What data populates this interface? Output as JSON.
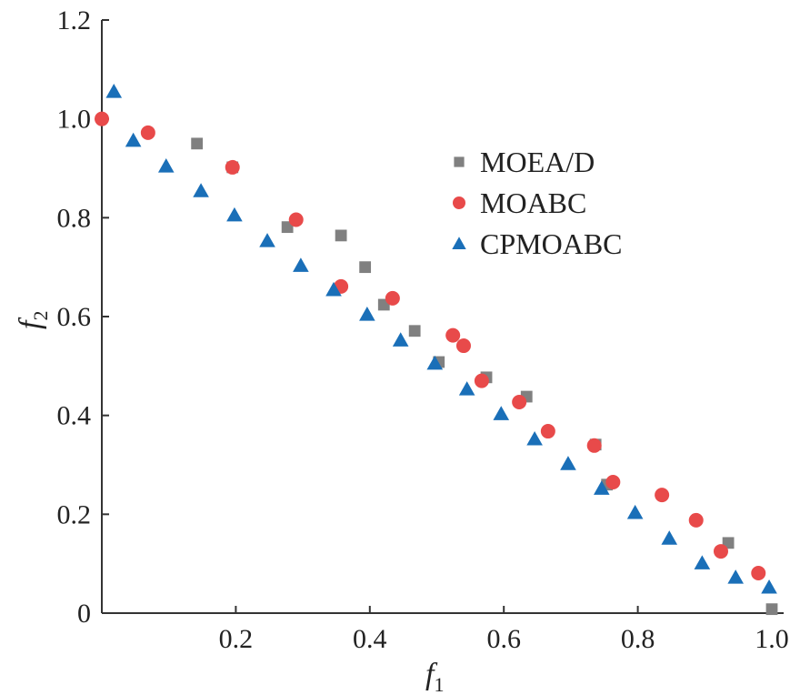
{
  "chart_data": {
    "type": "scatter",
    "xlabel": "f",
    "xlabel_sub": "1",
    "ylabel": "f",
    "ylabel_sub": "2",
    "xlim": [
      0,
      1.0
    ],
    "ylim": [
      0,
      1.2
    ],
    "xticks": [
      "0.2",
      "0.4",
      "0.6",
      "0.8",
      "1.0"
    ],
    "yticks": [
      "0",
      "0.2",
      "0.4",
      "0.6",
      "0.8",
      "1.0",
      "1.2"
    ],
    "grid": false,
    "legend_position": "upper-right",
    "series": [
      {
        "name": "MOEA/D",
        "marker": "square",
        "color": "#808080",
        "x": [
          0.142,
          0.195,
          0.277,
          0.357,
          0.393,
          0.421,
          0.467,
          0.503,
          0.574,
          0.634,
          0.737,
          0.754,
          0.935,
          1.0
        ],
        "y": [
          0.95,
          0.902,
          0.781,
          0.764,
          0.7,
          0.624,
          0.571,
          0.508,
          0.477,
          0.438,
          0.341,
          0.26,
          0.142,
          0.008
        ]
      },
      {
        "name": "MOABC",
        "marker": "circle",
        "color": "#e84a4a",
        "x": [
          0.0,
          0.069,
          0.195,
          0.29,
          0.357,
          0.434,
          0.524,
          0.54,
          0.567,
          0.623,
          0.666,
          0.735,
          0.763,
          0.836,
          0.887,
          0.924,
          0.98
        ],
        "y": [
          1.0,
          0.972,
          0.902,
          0.796,
          0.661,
          0.637,
          0.562,
          0.541,
          0.47,
          0.427,
          0.368,
          0.339,
          0.265,
          0.239,
          0.188,
          0.125,
          0.081
        ]
      },
      {
        "name": "CPMOABC",
        "marker": "triangle",
        "color": "#1a6fb8",
        "x": [
          0.018,
          0.047,
          0.096,
          0.148,
          0.198,
          0.247,
          0.297,
          0.346,
          0.396,
          0.446,
          0.497,
          0.545,
          0.596,
          0.646,
          0.696,
          0.746,
          0.796,
          0.847,
          0.896,
          0.946,
          0.996
        ],
        "y": [
          1.055,
          0.956,
          0.904,
          0.854,
          0.805,
          0.753,
          0.703,
          0.654,
          0.604,
          0.552,
          0.505,
          0.453,
          0.403,
          0.352,
          0.302,
          0.252,
          0.203,
          0.151,
          0.101,
          0.072,
          0.052
        ]
      }
    ]
  }
}
